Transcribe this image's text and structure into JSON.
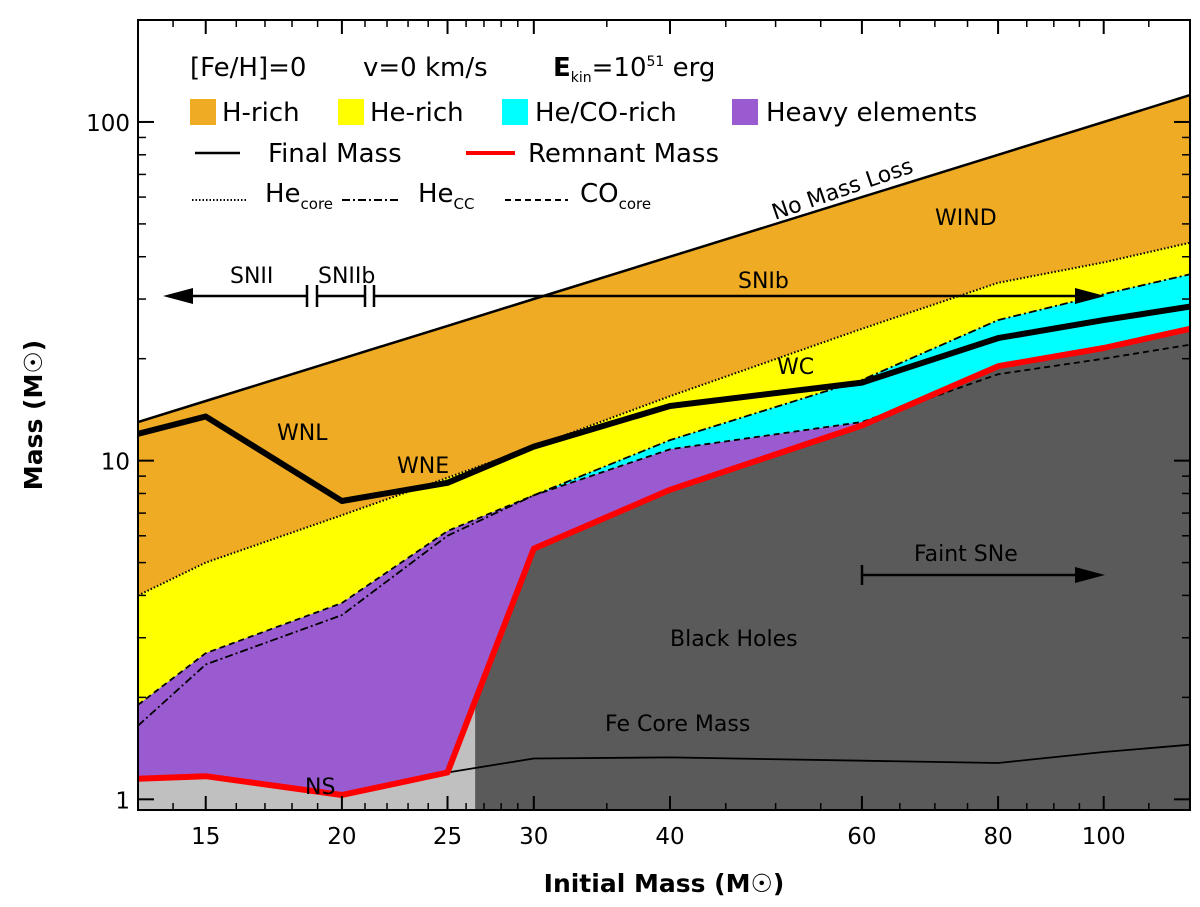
{
  "chart_data": {
    "type": "area",
    "title": "",
    "xlabel": "Initial Mass (M",
    "xlabel_symbol": "☉",
    "xlabel_close": ")",
    "ylabel": "Mass (M",
    "ylabel_symbol": "☉",
    "ylabel_close": ")",
    "xscale": "log",
    "yscale": "log",
    "xlim": [
      13,
      120
    ],
    "ylim": [
      0.93,
      200
    ],
    "xticks": [
      15,
      20,
      25,
      30,
      40,
      60,
      80,
      100
    ],
    "yticks": [
      1,
      10,
      100
    ],
    "header": {
      "feh": "[Fe/H]=0",
      "vel": "v=0 km/s",
      "ekin_main": "E",
      "ekin_sub": "kin",
      "ekin_eq": "=10",
      "ekin_exp": "51",
      "ekin_unit": " erg"
    },
    "legend": {
      "swatches": [
        {
          "label": "H-rich",
          "color": "#EFAB23"
        },
        {
          "label": "He-rich",
          "color": "#FFFF00"
        },
        {
          "label": "He/CO-rich",
          "color": "#00FFFF"
        },
        {
          "label": "Heavy elements",
          "color": "#9B5BD0"
        }
      ],
      "final_mass": "Final Mass",
      "remnant_mass": "Remnant Mass",
      "he_core_main": "He",
      "he_core_sub": "core",
      "he_cc_main": "He",
      "he_cc_sub": "CC",
      "co_core_main": "CO",
      "co_core_sub": "core"
    },
    "colors": {
      "h_rich": "#EFAB23",
      "he_rich": "#FFFF00",
      "heco_rich": "#00FFFF",
      "heavy": "#9B5BD0",
      "black_hole": "#5A5A5A",
      "neutron_star": "#C0C0C0",
      "remnant_line": "#FF0000",
      "final_line": "#000000"
    },
    "series": [
      {
        "name": "No Mass Loss",
        "x": [
          13,
          120
        ],
        "y": [
          13,
          120
        ]
      },
      {
        "name": "He_core",
        "x": [
          13,
          15,
          20,
          25,
          30,
          40,
          60,
          80,
          100,
          120
        ],
        "y": [
          4.0,
          5.0,
          6.9,
          8.9,
          11.0,
          15.5,
          24.5,
          33.5,
          38.5,
          44.0
        ]
      },
      {
        "name": "He_CC",
        "x": [
          13,
          15,
          20,
          25,
          30,
          40,
          60,
          80,
          100,
          120
        ],
        "y": [
          1.65,
          2.5,
          3.5,
          6.0,
          7.9,
          11.5,
          17.3,
          26.0,
          31.0,
          35.5
        ]
      },
      {
        "name": "CO_core",
        "x": [
          13,
          15,
          20,
          25,
          30,
          40,
          60,
          80,
          100,
          120
        ],
        "y": [
          1.9,
          2.7,
          3.8,
          6.2,
          7.9,
          10.8,
          13.0,
          18.0,
          20.0,
          22.0
        ]
      },
      {
        "name": "Final Mass",
        "x": [
          13,
          15,
          20,
          25,
          30,
          40,
          60,
          80,
          100,
          120
        ],
        "y": [
          12.0,
          13.5,
          7.6,
          8.6,
          11.0,
          14.5,
          17.0,
          23.0,
          26.0,
          28.5
        ]
      },
      {
        "name": "Remnant Mass",
        "x": [
          13,
          15,
          20,
          25,
          30,
          40,
          60,
          80,
          100,
          120
        ],
        "y": [
          1.15,
          1.17,
          1.03,
          1.2,
          5.5,
          8.2,
          12.7,
          19.0,
          21.5,
          24.5
        ]
      },
      {
        "name": "Fe Core Mass",
        "x": [
          25,
          30,
          40,
          60,
          80,
          100,
          120
        ],
        "y": [
          1.2,
          1.32,
          1.33,
          1.3,
          1.28,
          1.38,
          1.45
        ]
      }
    ],
    "ns_bh_boundary": 26.5,
    "annotations": {
      "no_mass_loss": "No Mass Loss",
      "wind": "WIND",
      "wc": "WC",
      "wnl": "WNL",
      "wne": "WNE",
      "snii": "SNII",
      "sniib": "SNIIb",
      "snib": "SNIb",
      "faint_sne": "Faint SNe",
      "black_holes": "Black Holes",
      "fe_core_mass": "Fe Core Mass",
      "ns": "NS"
    }
  }
}
